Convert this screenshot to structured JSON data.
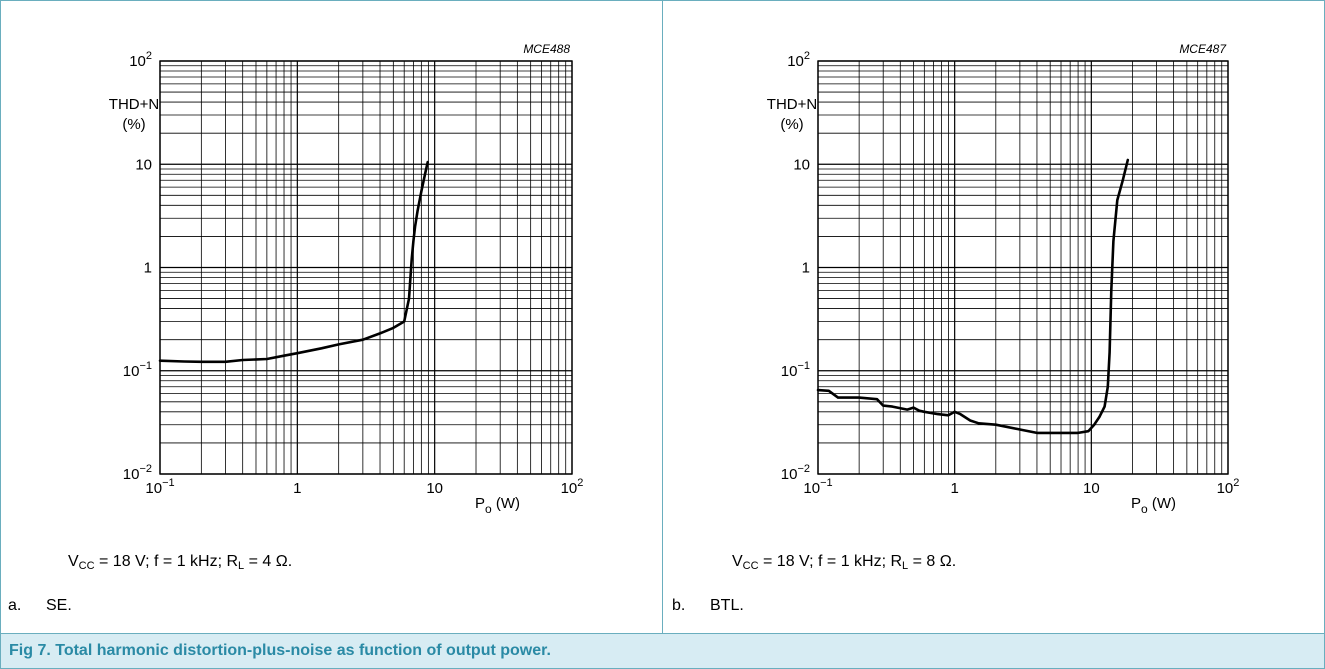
{
  "figure_caption": "Fig 7.   Total harmonic distortion-plus-noise as function of output power.",
  "panels": [
    {
      "id": "MCE488",
      "conditions": {
        "vcc": "V",
        "vcc_sub": "CC",
        "rest1": " = 18 V; f = 1 kHz; R",
        "rl_sub": "L",
        "rest2": " = 4 Ω."
      },
      "sublabel_tag": "a.",
      "sublabel_text": "SE."
    },
    {
      "id": "MCE487",
      "conditions": {
        "vcc": "V",
        "vcc_sub": "CC",
        "rest1": " = 18 V; f = 1 kHz; R",
        "rl_sub": "L",
        "rest2": " = 8 Ω."
      },
      "sublabel_tag": "b.",
      "sublabel_text": "BTL."
    }
  ],
  "chart_data": [
    {
      "type": "line",
      "code": "MCE488",
      "xscale": "log",
      "yscale": "log",
      "xlim": [
        0.1,
        100
      ],
      "ylim": [
        0.01,
        100
      ],
      "grid": true,
      "xticks": [
        {
          "v": 0.1,
          "b": "10",
          "e": "−1"
        },
        {
          "v": 1,
          "b": "1",
          "e": ""
        },
        {
          "v": 10,
          "b": "10",
          "e": ""
        },
        {
          "v": 100,
          "b": "10",
          "e": "2"
        }
      ],
      "yticks": [
        {
          "v": 0.01,
          "b": "10",
          "e": "−2"
        },
        {
          "v": 0.1,
          "b": "10",
          "e": "−1"
        },
        {
          "v": 1,
          "b": "1",
          "e": ""
        },
        {
          "v": 10,
          "b": "10",
          "e": ""
        },
        {
          "v": 100,
          "b": "10",
          "e": "2"
        }
      ],
      "ylabel_lines": [
        "THD+N",
        "(%)"
      ],
      "xlabel": {
        "main": "P",
        "sub": "o",
        "unit": " (W)"
      },
      "series": [
        {
          "x": [
            0.1,
            0.15,
            0.2,
            0.3,
            0.4,
            0.6,
            0.8,
            1.0,
            1.5,
            2.0,
            3.0,
            4.0,
            5.0,
            6.0,
            6.5,
            6.8,
            7.0,
            7.2,
            7.5,
            8.0,
            8.5,
            8.9
          ],
          "y": [
            0.125,
            0.123,
            0.122,
            0.122,
            0.127,
            0.13,
            0.14,
            0.148,
            0.165,
            0.18,
            0.2,
            0.23,
            0.26,
            0.3,
            0.5,
            1.2,
            1.8,
            2.5,
            3.5,
            5.5,
            8.0,
            10.5
          ]
        }
      ]
    },
    {
      "type": "line",
      "code": "MCE487",
      "xscale": "log",
      "yscale": "log",
      "xlim": [
        0.1,
        100
      ],
      "ylim": [
        0.01,
        100
      ],
      "grid": true,
      "xticks": [
        {
          "v": 0.1,
          "b": "10",
          "e": "−1"
        },
        {
          "v": 1,
          "b": "1",
          "e": ""
        },
        {
          "v": 10,
          "b": "10",
          "e": ""
        },
        {
          "v": 100,
          "b": "10",
          "e": "2"
        }
      ],
      "yticks": [
        {
          "v": 0.01,
          "b": "10",
          "e": "−2"
        },
        {
          "v": 0.1,
          "b": "10",
          "e": "−1"
        },
        {
          "v": 1,
          "b": "1",
          "e": ""
        },
        {
          "v": 10,
          "b": "10",
          "e": ""
        },
        {
          "v": 100,
          "b": "10",
          "e": "2"
        }
      ],
      "ylabel_lines": [
        "THD+N",
        "(%)"
      ],
      "xlabel": {
        "main": "P",
        "sub": "o",
        "unit": " (W)"
      },
      "series": [
        {
          "x": [
            0.1,
            0.12,
            0.14,
            0.2,
            0.27,
            0.3,
            0.35,
            0.45,
            0.5,
            0.55,
            0.6,
            0.75,
            0.9,
            1.0,
            1.1,
            1.3,
            1.5,
            2.0,
            3.0,
            4.0,
            5.0,
            6.0,
            8.0,
            9.5,
            10.5,
            11.5,
            12.5,
            13.2,
            13.6,
            14.0,
            14.5,
            15.5,
            17.0,
            18.5
          ],
          "y": [
            0.065,
            0.064,
            0.055,
            0.055,
            0.053,
            0.046,
            0.045,
            0.042,
            0.044,
            0.041,
            0.04,
            0.038,
            0.037,
            0.04,
            0.038,
            0.033,
            0.031,
            0.03,
            0.027,
            0.025,
            0.025,
            0.025,
            0.025,
            0.026,
            0.03,
            0.036,
            0.045,
            0.07,
            0.15,
            0.6,
            1.8,
            4.5,
            7.0,
            11.0
          ]
        }
      ]
    }
  ]
}
